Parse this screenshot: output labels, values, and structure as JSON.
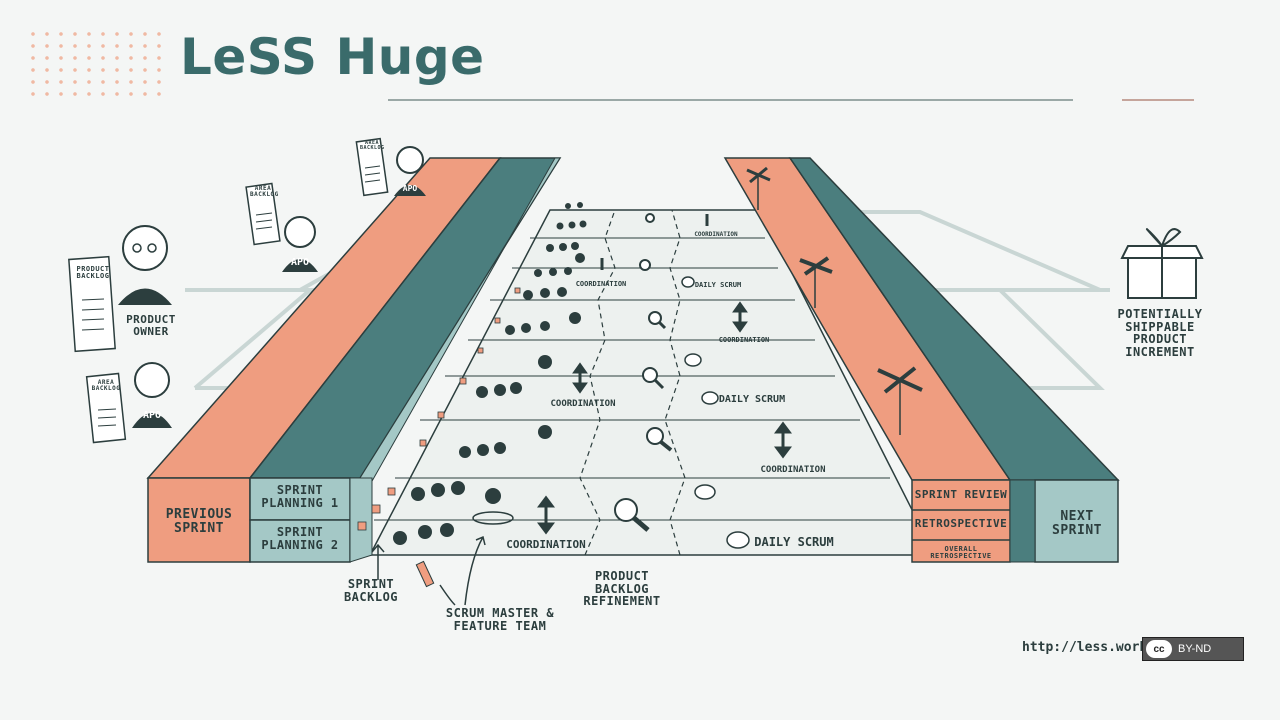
{
  "slide": {
    "title": "LeSS Huge",
    "credit_url": "http://less.works",
    "license_badge": "BY-ND",
    "license_icon": "cc-icon"
  },
  "roles": {
    "product_owner": "PRODUCT OWNER",
    "product_backlog": "PRODUCT BACKLOG",
    "area_backlog": "AREA BACKLOG",
    "apo": "APO"
  },
  "left_blocks": {
    "previous_sprint": "PREVIOUS SPRINT",
    "sprint_planning_1": "SPRINT PLANNING 1",
    "sprint_planning_2": "SPRINT PLANNING 2"
  },
  "right_blocks": {
    "sprint_review": "SPRINT REVIEW",
    "retrospective": "RETROSPECTIVE",
    "overall_retrospective": "OVERALL RETROSPECTIVE",
    "next_sprint": "NEXT SPRINT"
  },
  "track_labels": {
    "coordination": "COORDINATION",
    "daily_scrum": "DAILY SCRUM"
  },
  "callouts": {
    "sprint_backlog": "SPRINT BACKLOG",
    "scrum_master_team": "SCRUM MASTER & FEATURE TEAM",
    "pbr": "PRODUCT BACKLOG REFINEMENT",
    "increment": "POTENTIALLY SHIPPABLE PRODUCT INCREMENT"
  },
  "colors": {
    "salmon": "#ef9d80",
    "teal": "#4b7e7e",
    "teal_light": "#a4c8c6",
    "ink": "#2c3e3e"
  }
}
